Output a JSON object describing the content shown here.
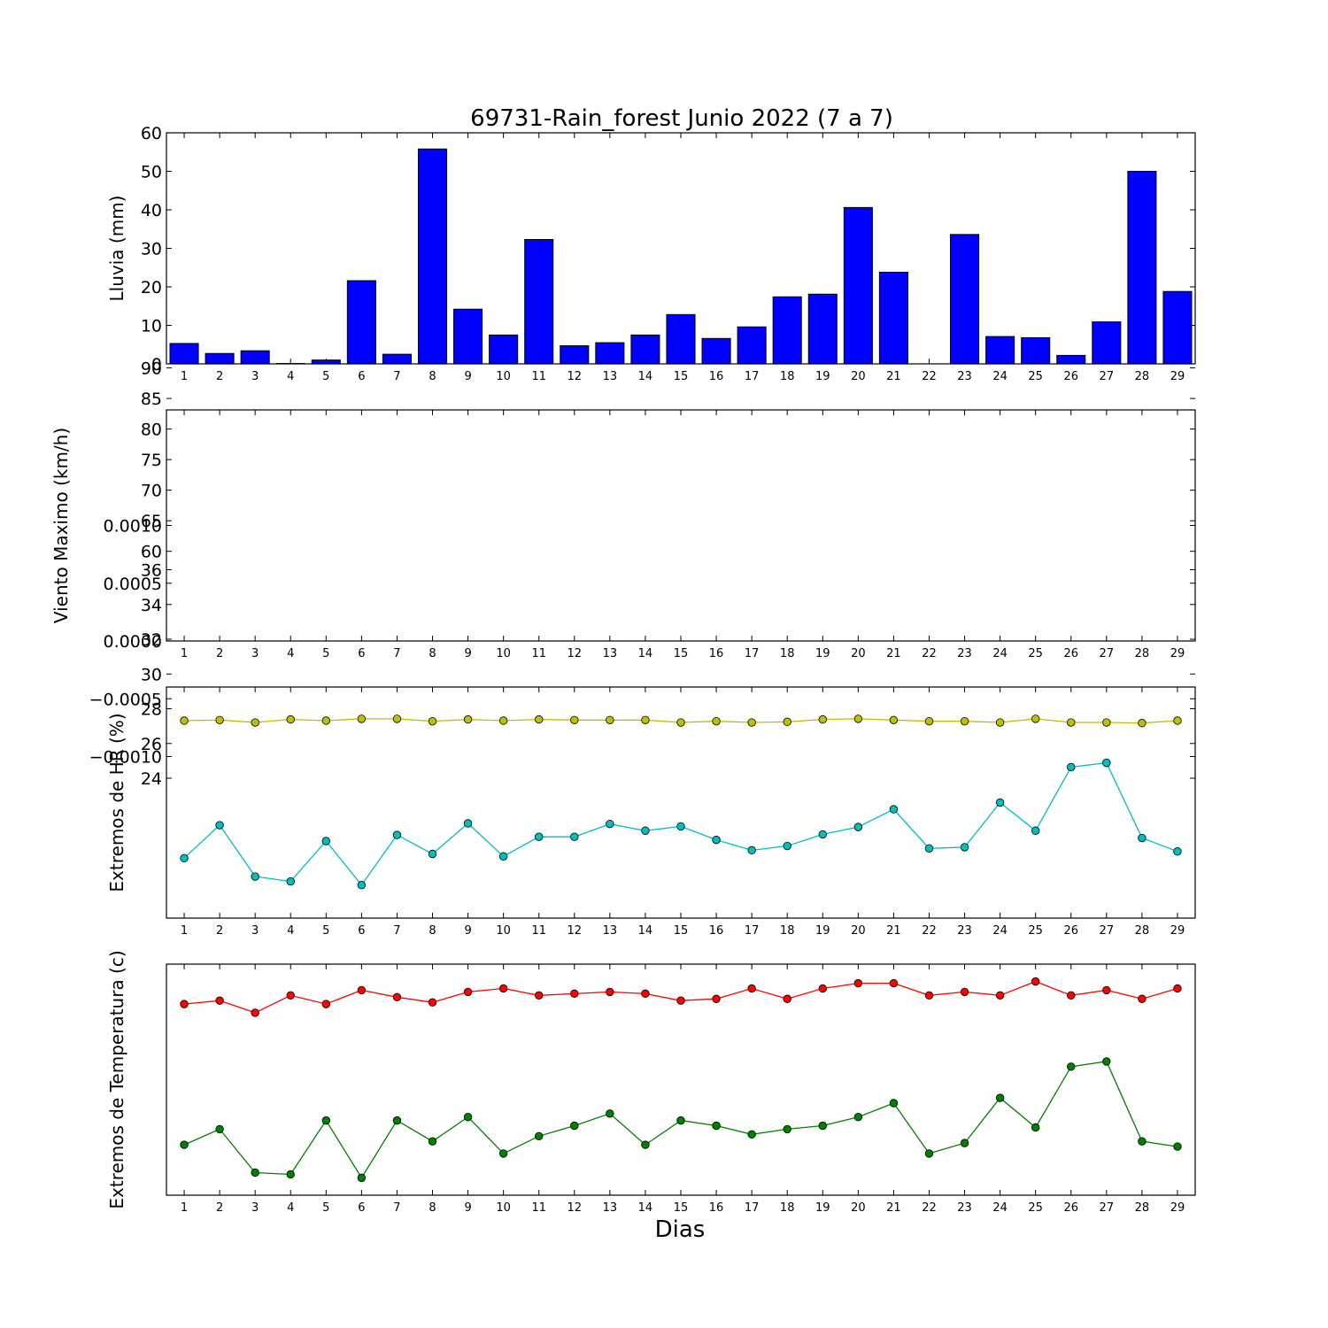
{
  "title": "69731-Rain_forest Junio 2022  (7 a 7)",
  "xlabel": "Dias",
  "chart_data": [
    {
      "type": "bar",
      "id": "rain",
      "ylabel": "Lluvia (mm)",
      "ylim": [
        0,
        60
      ],
      "yticks": [
        "0",
        "10",
        "20",
        "30",
        "40",
        "50",
        "60"
      ],
      "categories": [
        "1",
        "2",
        "3",
        "4",
        "5",
        "6",
        "7",
        "8",
        "9",
        "10",
        "11",
        "12",
        "13",
        "14",
        "15",
        "16",
        "17",
        "18",
        "19",
        "20",
        "21",
        "22",
        "23",
        "24",
        "25",
        "26",
        "27",
        "28",
        "29"
      ],
      "values": [
        5.3,
        2.7,
        3.4,
        0.1,
        1.0,
        21.6,
        2.5,
        55.8,
        14.2,
        7.5,
        32.3,
        4.7,
        5.5,
        7.5,
        12.8,
        6.6,
        9.6,
        17.4,
        18.1,
        40.6,
        23.8,
        0,
        33.6,
        7.1,
        6.8,
        2.2,
        10.9,
        50.0,
        18.8
      ],
      "color": "#0000ff",
      "grid": false
    },
    {
      "type": "line",
      "id": "wind",
      "ylabel": "Viento Maximo (km/h)",
      "ylim": [
        -0.001,
        0.001
      ],
      "yticks": [
        "−0.0010",
        "−0.0005",
        "0.0000",
        "0.0005",
        "0.0010"
      ],
      "categories": [
        "1",
        "2",
        "3",
        "4",
        "5",
        "6",
        "7",
        "8",
        "9",
        "10",
        "11",
        "12",
        "13",
        "14",
        "15",
        "16",
        "17",
        "18",
        "19",
        "20",
        "21",
        "22",
        "23",
        "24",
        "25",
        "26",
        "27",
        "28",
        "29"
      ],
      "series": [],
      "grid": false
    },
    {
      "type": "line",
      "id": "hr",
      "ylabel": "Extremos de HR (%)",
      "ylim": [
        55.2,
        93
      ],
      "yticks": [
        "60",
        "65",
        "70",
        "75",
        "80",
        "85",
        "90"
      ],
      "categories": [
        "1",
        "2",
        "3",
        "4",
        "5",
        "6",
        "7",
        "8",
        "9",
        "10",
        "11",
        "12",
        "13",
        "14",
        "15",
        "16",
        "17",
        "18",
        "19",
        "20",
        "21",
        "22",
        "23",
        "24",
        "25",
        "26",
        "27",
        "28",
        "29"
      ],
      "series": [
        {
          "color": "#bfbf00",
          "values": [
            87.5,
            87.6,
            87.2,
            87.7,
            87.5,
            87.8,
            87.8,
            87.4,
            87.7,
            87.5,
            87.7,
            87.6,
            87.6,
            87.6,
            87.2,
            87.4,
            87.2,
            87.3,
            87.7,
            87.8,
            87.6,
            87.4,
            87.4,
            87.2,
            87.8,
            87.2,
            87.2,
            87.1,
            87.5
          ]
        },
        {
          "color": "#00bfbf",
          "values": [
            65.0,
            70.4,
            62.0,
            61.2,
            67.8,
            60.6,
            68.8,
            65.7,
            70.7,
            65.3,
            68.5,
            68.5,
            70.6,
            69.5,
            70.2,
            68.0,
            66.3,
            67.0,
            68.9,
            70.1,
            73.0,
            66.6,
            66.8,
            74.1,
            69.5,
            79.9,
            80.6,
            68.3,
            66.1
          ]
        }
      ],
      "grid": false
    },
    {
      "type": "line",
      "id": "temp",
      "ylabel": "Extremos de Temperatura (c)",
      "ylim": [
        24,
        37.3
      ],
      "yticks": [
        "24",
        "26",
        "28",
        "30",
        "32",
        "34",
        "36"
      ],
      "categories": [
        "1",
        "2",
        "3",
        "4",
        "5",
        "6",
        "7",
        "8",
        "9",
        "10",
        "11",
        "12",
        "13",
        "14",
        "15",
        "16",
        "17",
        "18",
        "19",
        "20",
        "21",
        "22",
        "23",
        "24",
        "25",
        "26",
        "27",
        "28",
        "29"
      ],
      "series": [
        {
          "color": "#ff0000",
          "values": [
            35.0,
            35.2,
            34.5,
            35.5,
            35.0,
            35.8,
            35.4,
            35.1,
            35.7,
            35.9,
            35.5,
            35.6,
            35.7,
            35.6,
            35.2,
            35.3,
            35.9,
            35.3,
            35.9,
            36.2,
            36.2,
            35.5,
            35.7,
            35.5,
            36.3,
            35.5,
            35.8,
            35.3,
            35.9
          ]
        },
        {
          "color": "#008000",
          "values": [
            26.9,
            27.8,
            25.3,
            25.2,
            28.3,
            25.0,
            28.3,
            27.1,
            28.5,
            26.4,
            27.4,
            28.0,
            28.7,
            26.9,
            28.3,
            28.0,
            27.5,
            27.8,
            28.0,
            28.5,
            29.3,
            26.4,
            27.0,
            29.6,
            27.9,
            31.4,
            31.7,
            27.1,
            26.8
          ]
        }
      ],
      "grid": false
    }
  ]
}
